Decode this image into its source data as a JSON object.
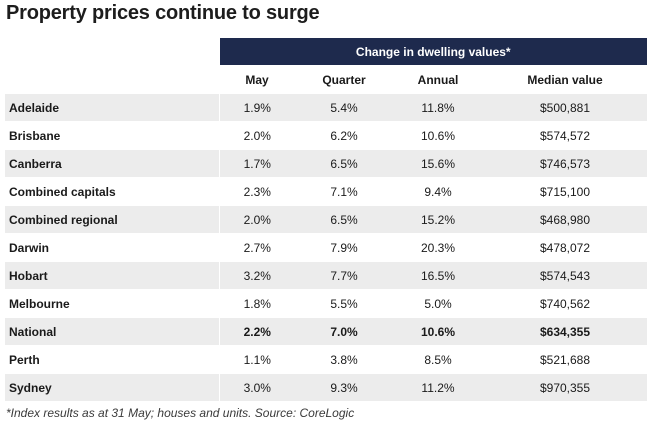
{
  "title": "Property prices continue to surge",
  "chart_data": {
    "type": "table",
    "title": "Property prices continue to surge",
    "group_header": "Change in dwelling values*",
    "columns": [
      "May",
      "Quarter",
      "Annual",
      "Median value"
    ],
    "rows": [
      {
        "name": "Adelaide",
        "values": [
          "1.9%",
          "5.4%",
          "11.8%",
          "$500,881"
        ],
        "bold": false
      },
      {
        "name": "Brisbane",
        "values": [
          "2.0%",
          "6.2%",
          "10.6%",
          "$574,572"
        ],
        "bold": false
      },
      {
        "name": "Canberra",
        "values": [
          "1.7%",
          "6.5%",
          "15.6%",
          "$746,573"
        ],
        "bold": false
      },
      {
        "name": "Combined capitals",
        "values": [
          "2.3%",
          "7.1%",
          "9.4%",
          "$715,100"
        ],
        "bold": false
      },
      {
        "name": "Combined regional",
        "values": [
          "2.0%",
          "6.5%",
          "15.2%",
          "$468,980"
        ],
        "bold": false
      },
      {
        "name": "Darwin",
        "values": [
          "2.7%",
          "7.9%",
          "20.3%",
          "$478,072"
        ],
        "bold": false
      },
      {
        "name": "Hobart",
        "values": [
          "3.2%",
          "7.7%",
          "16.5%",
          "$574,543"
        ],
        "bold": false
      },
      {
        "name": "Melbourne",
        "values": [
          "1.8%",
          "5.5%",
          "5.0%",
          "$740,562"
        ],
        "bold": false
      },
      {
        "name": "National",
        "values": [
          "2.2%",
          "7.0%",
          "10.6%",
          "$634,355"
        ],
        "bold": true
      },
      {
        "name": "Perth",
        "values": [
          "1.1%",
          "3.8%",
          "8.5%",
          "$521,688"
        ],
        "bold": false
      },
      {
        "name": "Sydney",
        "values": [
          "3.0%",
          "9.3%",
          "11.2%",
          "$970,355"
        ],
        "bold": false
      }
    ]
  },
  "footnote": "*Index results as at 31 May; houses and units. Source: CoreLogic",
  "colors": {
    "header_bg": "#1e2a4d",
    "header_text": "#ffffff",
    "stripe": "#ececec"
  }
}
